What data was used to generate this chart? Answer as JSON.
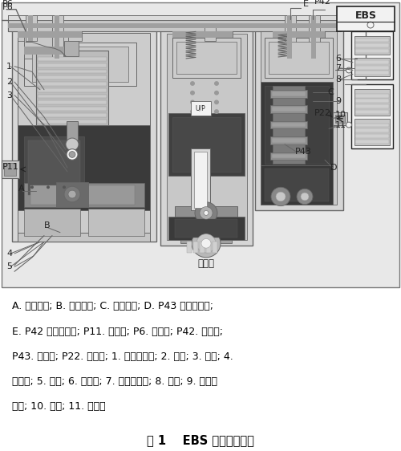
{
  "fig_width": 5.0,
  "fig_height": 5.62,
  "dpi": 100,
  "bg_color": "#ffffff",
  "title": "图 1    EBS 挂车阀结构图",
  "title_fontsize": 10.5,
  "caption_lines": [
    "A. 输入气室; B. 流通气室; C. 排气气室; D. P43 口输入气室;",
    "E. P42 口输入气室; P11. 输入口; P6. 电控口; P42. 气控口;",
    "P43. 气控口; P22. 输出口; 1. 比例电磁铁; 2. 球阀; 3. 弹簧; 4.",
    "比例阀; 5. 弹簧; 6. 继动阀; 7. 继动阀活塞; 8. 弹簧; 9. 继动阀",
    "阀座; 10. 弹簧; 11. 滑阀。"
  ],
  "caption_fontsize": 9.0,
  "text_color": "#000000"
}
